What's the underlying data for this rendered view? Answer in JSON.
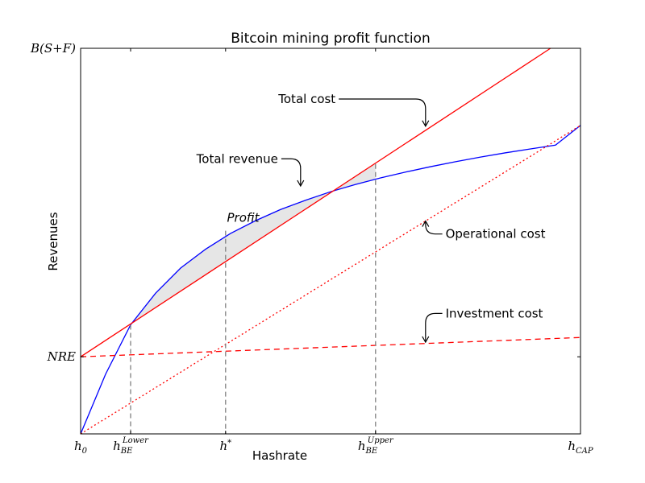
{
  "chart_data": {
    "type": "line",
    "title": "Bitcoin mining profit function",
    "xlabel": "Hashrate",
    "ylabel": "Revenues",
    "xlim": [
      0,
      1
    ],
    "ylim": [
      0,
      1
    ],
    "grid": false,
    "legend": "none",
    "x_ticks": [
      {
        "value": 0.0,
        "main": "h",
        "sub": "0",
        "sup": ""
      },
      {
        "value": 0.1,
        "main": "h",
        "sub": "BE",
        "sup": "Lower"
      },
      {
        "value": 0.29,
        "main": "h",
        "sub": "",
        "sup": "*"
      },
      {
        "value": 0.59,
        "main": "h",
        "sub": "BE",
        "sup": "Upper"
      },
      {
        "value": 1.0,
        "main": "h",
        "sub": "CAP",
        "sup": ""
      }
    ],
    "y_ticks": [
      {
        "value": 0.2,
        "label": "NRE"
      },
      {
        "value": 1.0,
        "label": "B(S+F)"
      }
    ],
    "series": [
      {
        "role": "total-revenue",
        "color": "#0000ff",
        "style": "solid",
        "x": [
          0,
          0.05,
          0.1,
          0.15,
          0.2,
          0.25,
          0.3,
          0.35,
          0.4,
          0.45,
          0.5,
          0.55,
          0.6,
          0.65,
          0.7,
          0.75,
          0.8,
          0.85,
          0.9,
          0.95,
          1.0
        ],
        "y": [
          0,
          0.155,
          0.283,
          0.365,
          0.43,
          0.479,
          0.52,
          0.553,
          0.582,
          0.606,
          0.628,
          0.647,
          0.664,
          0.679,
          0.693,
          0.706,
          0.718,
          0.729,
          0.739,
          0.749,
          0.8
        ]
      },
      {
        "role": "total-cost",
        "color": "#ff0000",
        "style": "solid",
        "x": [
          0,
          0.94
        ],
        "y": [
          0.2,
          1.0
        ]
      },
      {
        "role": "operational-cost",
        "color": "#ff0000",
        "style": "dotted",
        "x": [
          0,
          1.0
        ],
        "y": [
          0,
          0.8
        ]
      },
      {
        "role": "investment-cost",
        "color": "#ff0000",
        "style": "dashed",
        "x": [
          0,
          1.0
        ],
        "y": [
          0.2,
          0.25
        ]
      }
    ],
    "vertical_markers": [
      {
        "x": 0.1,
        "y": 0.283
      },
      {
        "x": 0.29,
        "y": 0.527
      },
      {
        "x": 0.59,
        "y": 0.7
      }
    ],
    "profit_region": {
      "x_from": 0.1,
      "x_to": 0.59,
      "label": "Profit",
      "label_x": 0.325,
      "label_y": 0.55
    },
    "annotations": [
      {
        "text": "Total cost",
        "text_x": 0.51,
        "text_y": 0.858,
        "point_x": 0.69,
        "point_y": 0.798
      },
      {
        "text": "Total revenue",
        "text_x": 0.395,
        "text_y": 0.703,
        "point_x": 0.44,
        "point_y": 0.643
      },
      {
        "text": "Operational cost",
        "text_x": 0.73,
        "text_y": 0.508,
        "point_x": 0.69,
        "point_y": 0.552
      },
      {
        "text": "Investment cost",
        "text_x": 0.73,
        "text_y": 0.302,
        "point_x": 0.69,
        "point_y": 0.238
      }
    ],
    "colors": {
      "revenue": "#0000ff",
      "cost": "#ff0000",
      "marker": "#808080",
      "profit_fill": "#e6e6e6"
    }
  }
}
